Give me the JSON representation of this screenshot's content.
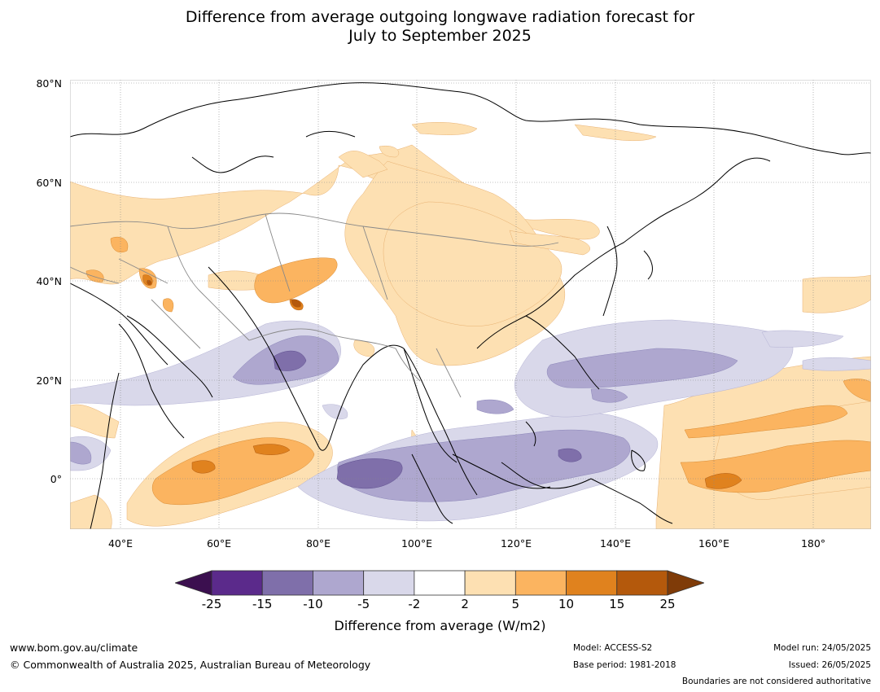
{
  "title": {
    "line1": "Difference from average outgoing longwave radiation forecast for",
    "line2": "July to September 2025"
  },
  "map": {
    "region": "Asia / Western Pacific",
    "lat_labels": [
      "80°N",
      "60°N",
      "40°N",
      "20°N",
      "0°"
    ],
    "lon_labels": [
      "40°E",
      "60°E",
      "80°E",
      "100°E",
      "120°E",
      "140°E",
      "160°E",
      "180°"
    ]
  },
  "colorbar": {
    "label": "Difference from average (W/m2)",
    "ticks": [
      "-25",
      "-15",
      "-10",
      "-5",
      "-2",
      "2",
      "5",
      "10",
      "15",
      "25"
    ],
    "colors": [
      "#3b0f4f",
      "#5b2a8b",
      "#7f6faa",
      "#aea7cf",
      "#d9d8ea",
      "#ffffff",
      "#fde0b2",
      "#fbb460",
      "#e0821e",
      "#b4590c",
      "#7f3b08"
    ]
  },
  "footer": {
    "website": "www.bom.gov.au/climate",
    "copyright": "© Commonwealth of Australia 2025, Australian Bureau of Meteorology",
    "model": "Model: ACCESS-S2",
    "base_period": "Base period: 1981-2018",
    "model_run": "Model run: 24/05/2025",
    "issued": "Issued: 26/05/2025",
    "disclaimer": "Boundaries are not considered authoritative"
  }
}
